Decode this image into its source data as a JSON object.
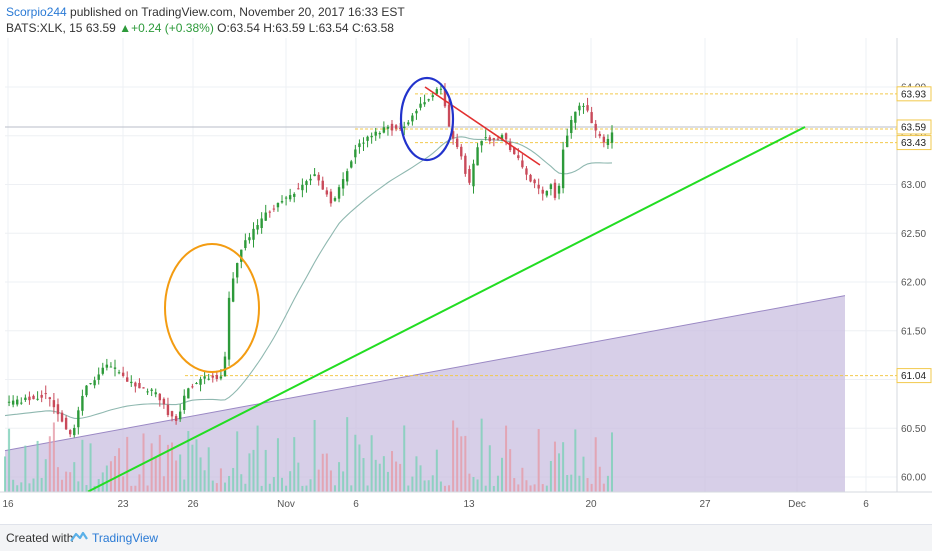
{
  "header": {
    "author": "Scorpio244",
    "published": " published on TradingView.com, November 20, 2017 16:33 EST",
    "symbol": "BATS:XLK, 15",
    "last": "63.59",
    "change": "+0.24 (+0.38%)",
    "ohlc": "O:63.54 H:63.59 L:63.54 C:63.58"
  },
  "footer": {
    "created_with": "Created with",
    "brand": "TradingView"
  },
  "colors": {
    "up": "#2d9a3a",
    "down": "#c94a5a",
    "ma": "#8fb8b0",
    "trend_green": "#22dd22",
    "trend_red": "#e23030",
    "level_line": "#f2c94c",
    "circle_orange": "#f39c12",
    "circle_blue": "#2233cc",
    "volume_area": "#c9bfe0"
  },
  "chart_data": {
    "type": "candlestick",
    "ylim": [
      59.8,
      64.3
    ],
    "y_ticks": [
      "60.00",
      "60.50",
      "61.00",
      "61.50",
      "62.00",
      "62.50",
      "63.00",
      "63.50",
      "64.00"
    ],
    "x_ticks": [
      "16",
      "23",
      "26",
      "Nov",
      "6",
      "13",
      "20",
      "27",
      "Dec",
      "6"
    ],
    "price_labels": [
      {
        "value": 63.93,
        "label": "63.93"
      },
      {
        "value": 63.59,
        "label": "63.59"
      },
      {
        "value": 63.43,
        "label": "63.43"
      },
      {
        "value": 61.04,
        "label": "61.04"
      }
    ],
    "path": [
      [
        0.0,
        60.75
      ],
      [
        0.07,
        60.85
      ],
      [
        0.11,
        60.4
      ],
      [
        0.13,
        60.9
      ],
      [
        0.17,
        61.15
      ],
      [
        0.21,
        60.95
      ],
      [
        0.25,
        60.85
      ],
      [
        0.28,
        60.55
      ],
      [
        0.3,
        60.9
      ],
      [
        0.34,
        61.05
      ],
      [
        0.36,
        61.0
      ],
      [
        0.37,
        61.9
      ],
      [
        0.39,
        62.35
      ],
      [
        0.43,
        62.7
      ],
      [
        0.48,
        62.95
      ],
      [
        0.51,
        63.1
      ],
      [
        0.54,
        62.8
      ],
      [
        0.58,
        63.4
      ],
      [
        0.63,
        63.6
      ],
      [
        0.65,
        63.55
      ],
      [
        0.69,
        63.85
      ],
      [
        0.72,
        64.0
      ],
      [
        0.73,
        63.6
      ],
      [
        0.75,
        63.3
      ],
      [
        0.765,
        63.0
      ],
      [
        0.78,
        63.45
      ],
      [
        0.82,
        63.5
      ],
      [
        0.855,
        63.15
      ],
      [
        0.87,
        63.0
      ],
      [
        0.885,
        62.9
      ],
      [
        0.9,
        63.0
      ],
      [
        0.91,
        62.8
      ],
      [
        0.92,
        63.4
      ],
      [
        0.935,
        63.7
      ],
      [
        0.955,
        63.85
      ],
      [
        0.975,
        63.5
      ],
      [
        0.99,
        63.4
      ],
      [
        1.0,
        63.55
      ]
    ],
    "trendlines": [
      {
        "color": "green",
        "from": [
          0.0,
          59.85
        ],
        "to": [
          1.0,
          63.59
        ]
      },
      {
        "color": "red",
        "from": [
          0.0,
          64.0
        ],
        "to": [
          1.0,
          63.2
        ]
      },
      {
        "color": "volume-top",
        "from": [
          0.0,
          60.27
        ],
        "to": [
          1.0,
          61.86
        ]
      }
    ],
    "annotations": [
      "orange-circle",
      "blue-circle"
    ]
  }
}
